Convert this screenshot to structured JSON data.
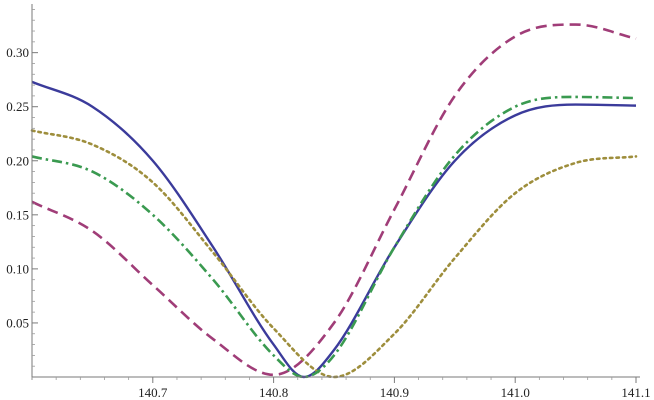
{
  "chart_data": {
    "type": "line",
    "title": "",
    "xlabel": "",
    "ylabel": "",
    "xlim": [
      140.6,
      141.1
    ],
    "ylim": [
      0.0,
      0.345
    ],
    "x_ticks": [
      140.7,
      140.8,
      140.9,
      141.0,
      141.1
    ],
    "x_tick_labels": [
      "140.7",
      "140.8",
      "140.9",
      "141.0",
      "141.1"
    ],
    "y_ticks": [
      0.05,
      0.1,
      0.15,
      0.2,
      0.25,
      0.3
    ],
    "y_tick_labels": [
      "0.05",
      "0.10",
      "0.15",
      "0.20",
      "0.25",
      "0.30"
    ],
    "grid": false,
    "legend": "none",
    "series": [
      {
        "color": "#3b3b9b",
        "style": "solid",
        "x": [
          140.6,
          140.65,
          140.7,
          140.75,
          140.8,
          140.825,
          140.85,
          140.9,
          140.95,
          141.0,
          141.05,
          141.1
        ],
        "values": [
          0.273,
          0.25,
          0.2,
          0.12,
          0.03,
          0.0,
          0.025,
          0.12,
          0.2,
          0.242,
          0.252,
          0.251
        ]
      },
      {
        "color": "#a03d78",
        "style": "dashed",
        "x": [
          140.6,
          140.65,
          140.7,
          140.75,
          140.8,
          140.85,
          140.9,
          140.95,
          141.0,
          141.05,
          141.1
        ],
        "values": [
          0.162,
          0.135,
          0.085,
          0.035,
          0.002,
          0.05,
          0.155,
          0.26,
          0.315,
          0.326,
          0.313
        ]
      },
      {
        "color": "#9e8e3c",
        "style": "dotted",
        "x": [
          140.6,
          140.65,
          140.7,
          140.75,
          140.8,
          140.85,
          140.9,
          140.95,
          141.0,
          141.05,
          141.1
        ],
        "values": [
          0.228,
          0.215,
          0.18,
          0.115,
          0.045,
          0.0,
          0.04,
          0.11,
          0.17,
          0.198,
          0.204
        ]
      },
      {
        "color": "#3a9a50",
        "style": "dashdot",
        "x": [
          140.6,
          140.65,
          140.7,
          140.75,
          140.8,
          140.825,
          140.85,
          140.9,
          140.95,
          141.0,
          141.05,
          141.1
        ],
        "values": [
          0.204,
          0.19,
          0.15,
          0.09,
          0.02,
          0.0,
          0.02,
          0.12,
          0.205,
          0.25,
          0.259,
          0.258
        ]
      }
    ]
  }
}
